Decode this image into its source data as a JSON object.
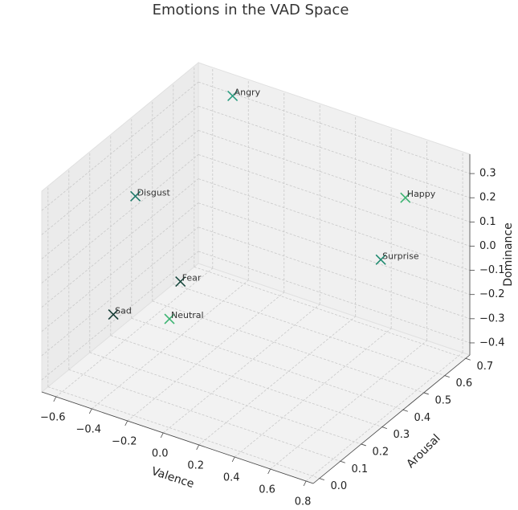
{
  "chart_data": {
    "type": "scatter3d",
    "title": "Emotions in the VAD Space",
    "xlabel": "Valence",
    "ylabel": "Arousal",
    "zlabel": "Dominance",
    "labels": [
      "Angry",
      "Happy",
      "Surprise",
      "Disgust",
      "Fear",
      "Sad",
      "Neutral"
    ],
    "x": [
      -0.43,
      0.76,
      0.4,
      -0.6,
      -0.64,
      -0.63,
      0.0
    ],
    "y": [
      0.67,
      0.48,
      0.67,
      0.35,
      0.6,
      0.27,
      0.0
    ],
    "z": [
      0.34,
      0.35,
      -0.13,
      0.11,
      -0.43,
      -0.33,
      0.0
    ],
    "colors": [
      "#2a9d80",
      "#3cb371",
      "#1f8a70",
      "#1f7a6a",
      "#1a4a3f",
      "#173d36",
      "#3cb371"
    ],
    "xlim": [
      -0.68,
      0.84
    ],
    "ylim": [
      -0.03,
      0.72
    ],
    "zlim": [
      -0.45,
      0.38
    ],
    "xticks": [
      {
        "value": -0.6,
        "label": "−0.6"
      },
      {
        "value": -0.4,
        "label": "−0.4"
      },
      {
        "value": -0.2,
        "label": "−0.2"
      },
      {
        "value": 0,
        "label": "0.0"
      },
      0.2,
      0.4,
      0.6,
      0.8
    ],
    "yticks": [
      {
        "value": 0,
        "label": "0.0"
      },
      0.1,
      0.2,
      0.3,
      0.4,
      0.5,
      0.6,
      0.7
    ],
    "zticks": [
      {
        "value": -0.4,
        "label": "−0.4"
      },
      {
        "value": -0.3,
        "label": "−0.3"
      },
      {
        "value": -0.2,
        "label": "−0.2"
      },
      {
        "value": -0.1,
        "label": "−0.1"
      },
      {
        "value": 0,
        "label": "0.0"
      },
      0.1,
      0.2,
      0.3
    ],
    "grid": true
  }
}
